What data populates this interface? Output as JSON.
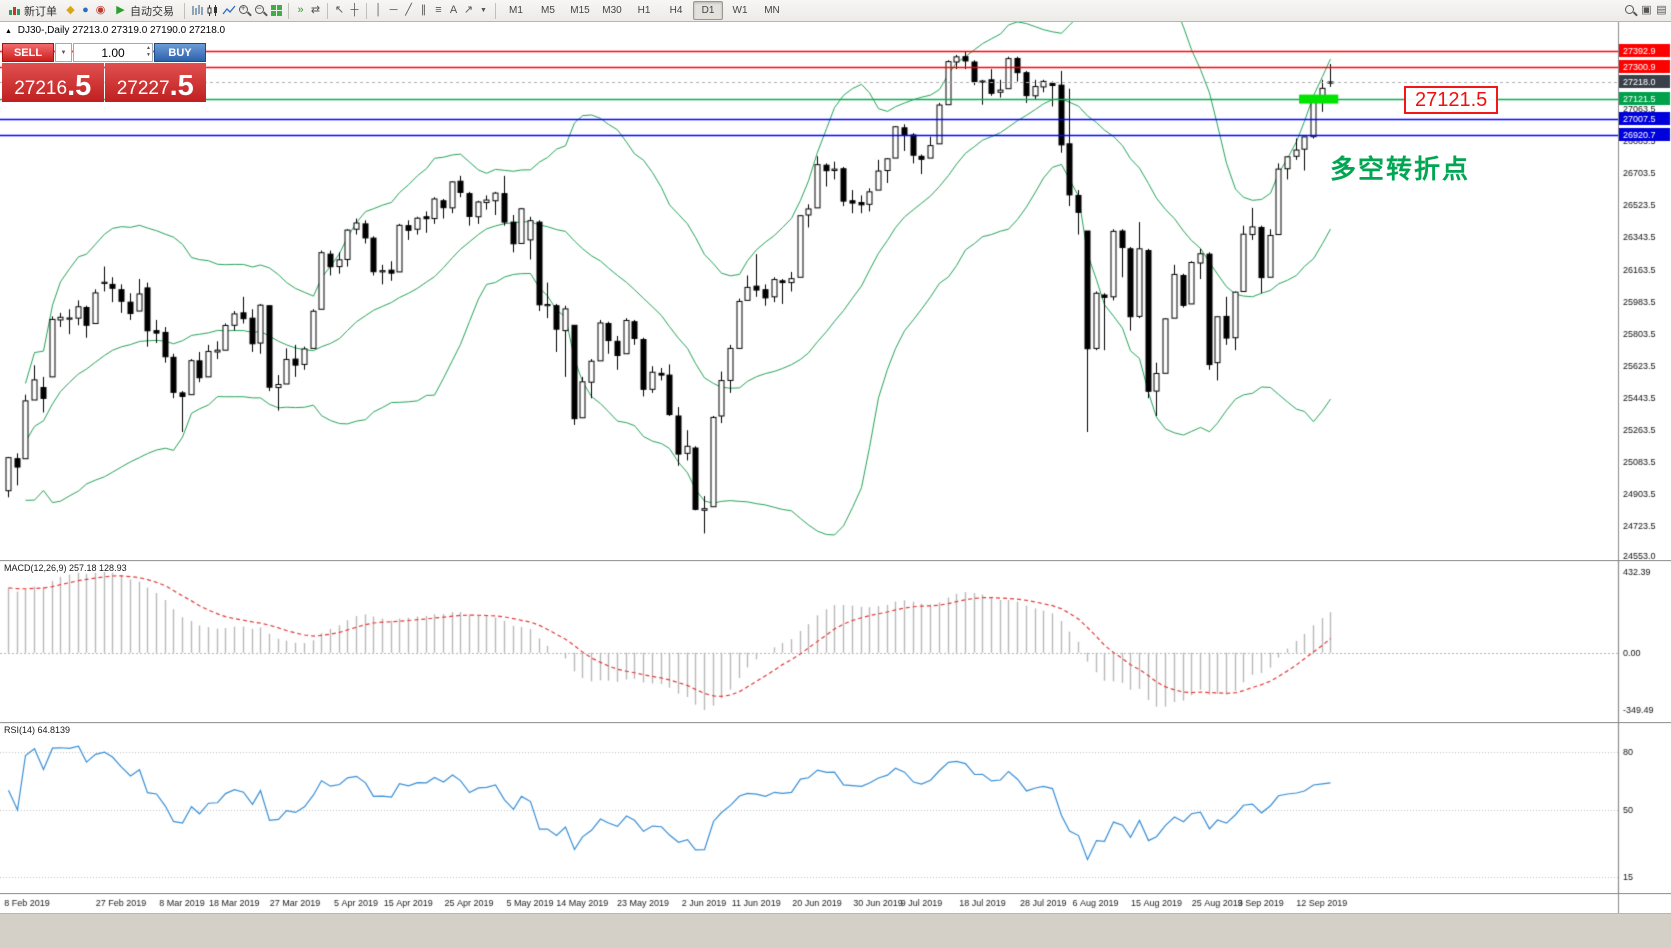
{
  "toolbar": {
    "new_order": "新订单",
    "auto_trading": "自动交易",
    "timeframes": [
      "M1",
      "M5",
      "M15",
      "M30",
      "H1",
      "H4",
      "D1",
      "W1",
      "MN"
    ],
    "active_timeframe": "D1"
  },
  "icons": {
    "triangle_up": "▲",
    "dropdown": "▼",
    "spin_up": "▲",
    "spin_down": "▼",
    "play": "▶",
    "diamond": "◆",
    "circle": "●",
    "ring": "◉",
    "cursor": "↖",
    "crosshair": "┼",
    "vline": "│",
    "hline": "─",
    "trendline": "╱",
    "channel": "∥",
    "fibonacci": "≡",
    "text_tool": "A",
    "arrow_tool": "↗",
    "autoscroll": "»",
    "shift": "⇄",
    "windows": "▣",
    "layout": "▤",
    "plus": "+",
    "minus": "−"
  },
  "chart_header": {
    "symbol": "DJ30-,Daily",
    "ohlc": "27213.0 27319.0 27190.0 27218.0"
  },
  "trade_panel": {
    "sell_label": "SELL",
    "buy_label": "BUY",
    "volume": "1.00",
    "sell_price": {
      "main": "27216",
      "pips": ".5"
    },
    "buy_price": {
      "main": "27227",
      "pips": ".5"
    }
  },
  "annotations": {
    "turning_point": "多空转折点",
    "price_tag": "27121.5"
  },
  "panels": {
    "macd_label": "MACD(12,26,9) 257.18 128.93",
    "macd_axis": {
      "max": "432.39",
      "zero": "0.00",
      "min": "-349.49"
    },
    "rsi_label": "RSI(14) 64.8139"
  },
  "chart_data": {
    "type": "candlestick",
    "symbol": "DJ30-",
    "period": "Daily",
    "ohlc_current": {
      "open": 27213.0,
      "high": 27319.0,
      "low": 27190.0,
      "close": 27218.0
    },
    "bid": 27216.5,
    "ask": 27227.5,
    "y_axis": {
      "top": 27420,
      "bottom": 24553,
      "ticks": [
        27063.5,
        26883.5,
        26703.5,
        26523.5,
        26343.5,
        26163.5,
        25983.5,
        25803.5,
        25623.5,
        25443.5,
        25263.5,
        25083.5,
        24903.5,
        24723.5,
        24553.0
      ]
    },
    "levels": [
      {
        "price": 27392.9,
        "label": "27392.9",
        "color": "#ff0000",
        "chip": "#ff0000",
        "width": 1.4
      },
      {
        "price": 27300.9,
        "label": "27300.9",
        "color": "#ff0000",
        "chip": "#ff0000",
        "width": 1.4
      },
      {
        "price": 27218.0,
        "label": "27218.0",
        "color": "#b0b0b0",
        "chip": "#3a4049",
        "width": 1,
        "style": "bid"
      },
      {
        "price": 27121.5,
        "label": "27121.5",
        "color": "#00b050",
        "chip": "#00a14b",
        "width": 1.4
      },
      {
        "price": 27007.5,
        "label": "27007.5",
        "color": "#0000ff",
        "chip": "#0000dd",
        "width": 1.6
      },
      {
        "price": 26920.7,
        "label": "26920.7",
        "color": "#0000ff",
        "chip": "#0000dd",
        "width": 1.6
      }
    ],
    "green_zone": {
      "price": 27121.5,
      "from_index": 148.4,
      "to_index": 152.9,
      "color": "#00e400"
    },
    "indicators": {
      "bollinger": {
        "period": 20,
        "deviation": 2,
        "color": "#27a35a"
      },
      "macd": {
        "fast": 12,
        "slow": 26,
        "signal": 9,
        "histogram_color": "#b9b9b9",
        "signal_color": "#e33b3b",
        "current_main": 257.18,
        "current_signal": 128.93
      },
      "rsi": {
        "period": 14,
        "color": "#3a8fd6",
        "levels": [
          80,
          50,
          15
        ],
        "current": 64.8139
      }
    },
    "x_ticks": [
      {
        "label": "8 Feb 2019",
        "index": 0
      },
      {
        "label": "27 Feb 2019",
        "index": 13
      },
      {
        "label": "8 Mar 2019",
        "index": 20
      },
      {
        "label": "18 Mar 2019",
        "index": 26
      },
      {
        "label": "27 Mar 2019",
        "index": 33
      },
      {
        "label": "5 Apr 2019",
        "index": 40
      },
      {
        "label": "15 Apr 2019",
        "index": 46
      },
      {
        "label": "25 Apr 2019",
        "index": 53
      },
      {
        "label": "5 May 2019",
        "index": 60
      },
      {
        "label": "14 May 2019",
        "index": 66
      },
      {
        "label": "23 May 2019",
        "index": 73
      },
      {
        "label": "2 Jun 2019",
        "index": 80
      },
      {
        "label": "11 Jun 2019",
        "index": 86
      },
      {
        "label": "20 Jun 2019",
        "index": 93
      },
      {
        "label": "30 Jun 2019",
        "index": 100
      },
      {
        "label": "9 Jul 2019",
        "index": 105
      },
      {
        "label": "18 Jul 2019",
        "index": 112
      },
      {
        "label": "28 Jul 2019",
        "index": 119
      },
      {
        "label": "6 Aug 2019",
        "index": 125
      },
      {
        "label": "15 Aug 2019",
        "index": 132
      },
      {
        "label": "25 Aug 2019",
        "index": 139
      },
      {
        "label": "3 Sep 2019",
        "index": 144
      },
      {
        "label": "12 Sep 2019",
        "index": 151
      }
    ],
    "candles": [
      [
        24920,
        25110,
        24883,
        25106
      ],
      [
        25100,
        25130,
        24950,
        25053
      ],
      [
        25100,
        25460,
        25100,
        25425
      ],
      [
        25430,
        25625,
        25430,
        25543
      ],
      [
        25500,
        25560,
        25360,
        25439
      ],
      [
        25560,
        25900,
        25560,
        25883
      ],
      [
        25880,
        25920,
        25840,
        25895
      ],
      [
        25890,
        25940,
        25800,
        25891
      ],
      [
        25890,
        25990,
        25850,
        25954
      ],
      [
        25950,
        25960,
        25780,
        25850
      ],
      [
        25860,
        26052,
        25860,
        26032
      ],
      [
        26090,
        26180,
        26040,
        26092
      ],
      [
        26080,
        26120,
        25980,
        26058
      ],
      [
        26050,
        26080,
        25920,
        25985
      ],
      [
        25980,
        26030,
        25880,
        25916
      ],
      [
        25930,
        26110,
        25930,
        26026
      ],
      [
        26060,
        26090,
        25730,
        25819
      ],
      [
        25820,
        25880,
        25750,
        25806
      ],
      [
        25810,
        25840,
        25640,
        25673
      ],
      [
        25670,
        25690,
        25440,
        25473
      ],
      [
        25470,
        25480,
        25250,
        25450
      ],
      [
        25460,
        25660,
        25460,
        25651
      ],
      [
        25650,
        25700,
        25530,
        25555
      ],
      [
        25560,
        25740,
        25560,
        25703
      ],
      [
        25700,
        25760,
        25660,
        25710
      ],
      [
        25710,
        25860,
        25710,
        25849
      ],
      [
        25850,
        25930,
        25820,
        25914
      ],
      [
        25920,
        26010,
        25860,
        25887
      ],
      [
        25890,
        25940,
        25700,
        25746
      ],
      [
        25750,
        25970,
        25690,
        25963
      ],
      [
        25960,
        25960,
        25480,
        25502
      ],
      [
        25500,
        25570,
        25370,
        25517
      ],
      [
        25520,
        25720,
        25520,
        25658
      ],
      [
        25660,
        25740,
        25560,
        25626
      ],
      [
        25630,
        25730,
        25600,
        25717
      ],
      [
        25720,
        25940,
        25720,
        25929
      ],
      [
        25940,
        26270,
        25940,
        26258
      ],
      [
        26250,
        26270,
        26130,
        26179
      ],
      [
        26180,
        26260,
        26140,
        26218
      ],
      [
        26220,
        26390,
        26180,
        26385
      ],
      [
        26390,
        26450,
        26360,
        26425
      ],
      [
        26420,
        26440,
        26310,
        26341
      ],
      [
        26340,
        26350,
        26130,
        26151
      ],
      [
        26150,
        26190,
        26080,
        26157
      ],
      [
        26160,
        26210,
        26100,
        26143
      ],
      [
        26150,
        26420,
        26150,
        26412
      ],
      [
        26410,
        26440,
        26330,
        26384
      ],
      [
        26390,
        26460,
        26360,
        26452
      ],
      [
        26460,
        26490,
        26370,
        26449
      ],
      [
        26450,
        26570,
        26420,
        26560
      ],
      [
        26550,
        26560,
        26450,
        26511
      ],
      [
        26510,
        26660,
        26480,
        26656
      ],
      [
        26660,
        26690,
        26570,
        26597
      ],
      [
        26590,
        26600,
        26410,
        26462
      ],
      [
        26460,
        26550,
        26420,
        26543
      ],
      [
        26540,
        26580,
        26500,
        26554
      ],
      [
        26550,
        26600,
        26470,
        26593
      ],
      [
        26590,
        26690,
        26410,
        26430
      ],
      [
        26430,
        26470,
        26260,
        26308
      ],
      [
        26310,
        26510,
        26310,
        26505
      ],
      [
        26330,
        26460,
        26220,
        26438
      ],
      [
        26430,
        26440,
        25930,
        25965
      ],
      [
        25960,
        26090,
        25890,
        25967
      ],
      [
        25960,
        25970,
        25700,
        25828
      ],
      [
        25820,
        25960,
        25560,
        25942
      ],
      [
        25850,
        25850,
        25290,
        25325
      ],
      [
        25330,
        25560,
        25330,
        25532
      ],
      [
        25530,
        25660,
        25440,
        25648
      ],
      [
        25650,
        25880,
        25650,
        25863
      ],
      [
        25860,
        25870,
        25690,
        25764
      ],
      [
        25760,
        25790,
        25600,
        25680
      ],
      [
        25690,
        25890,
        25690,
        25877
      ],
      [
        25870,
        25880,
        25740,
        25776
      ],
      [
        25770,
        25780,
        25450,
        25490
      ],
      [
        25490,
        25620,
        25470,
        25586
      ],
      [
        25580,
        25610,
        25540,
        25570
      ],
      [
        25570,
        25630,
        25340,
        25348
      ],
      [
        25340,
        25390,
        25060,
        25126
      ],
      [
        25130,
        25260,
        25090,
        25170
      ],
      [
        25160,
        25170,
        24810,
        24815
      ],
      [
        24810,
        24890,
        24680,
        24819
      ],
      [
        24830,
        25340,
        24830,
        25332
      ],
      [
        25340,
        25590,
        25300,
        25539
      ],
      [
        25540,
        25740,
        25470,
        25720
      ],
      [
        25720,
        26000,
        25720,
        25984
      ],
      [
        25990,
        26130,
        25990,
        26063
      ],
      [
        26070,
        26250,
        26010,
        26048
      ],
      [
        26050,
        26080,
        25960,
        26004
      ],
      [
        26010,
        26120,
        25980,
        26107
      ],
      [
        26100,
        26110,
        25970,
        26090
      ],
      [
        26090,
        26150,
        26040,
        26112
      ],
      [
        26120,
        26470,
        26120,
        26466
      ],
      [
        26470,
        26530,
        26400,
        26504
      ],
      [
        26510,
        26800,
        26510,
        26753
      ],
      [
        26750,
        26760,
        26630,
        26719
      ],
      [
        26720,
        26770,
        26670,
        26728
      ],
      [
        26730,
        26740,
        26520,
        26548
      ],
      [
        26550,
        26610,
        26480,
        26537
      ],
      [
        26540,
        26580,
        26480,
        26527
      ],
      [
        26530,
        26620,
        26490,
        26600
      ],
      [
        26610,
        26780,
        26610,
        26717
      ],
      [
        26720,
        26790,
        26650,
        26786
      ],
      [
        26790,
        26970,
        26790,
        26966
      ],
      [
        26960,
        26980,
        26830,
        26922
      ],
      [
        26920,
        26930,
        26760,
        26806
      ],
      [
        26800,
        26810,
        26700,
        26783
      ],
      [
        26790,
        26910,
        26790,
        26860
      ],
      [
        26870,
        27100,
        26870,
        27088
      ],
      [
        27090,
        27340,
        27090,
        27332
      ],
      [
        27330,
        27370,
        27290,
        27359
      ],
      [
        27360,
        27390,
        27290,
        27336
      ],
      [
        27330,
        27340,
        27200,
        27220
      ],
      [
        27220,
        27230,
        27090,
        27223
      ],
      [
        27230,
        27290,
        27140,
        27154
      ],
      [
        27160,
        27230,
        27130,
        27172
      ],
      [
        27180,
        27360,
        27180,
        27349
      ],
      [
        27350,
        27360,
        27220,
        27270
      ],
      [
        27270,
        27280,
        27100,
        27141
      ],
      [
        27140,
        27230,
        27120,
        27192
      ],
      [
        27190,
        27230,
        27160,
        27221
      ],
      [
        27210,
        27220,
        27080,
        27198
      ],
      [
        27200,
        27280,
        26820,
        26864
      ],
      [
        26870,
        27180,
        26520,
        26583
      ],
      [
        26580,
        26610,
        26360,
        26485
      ],
      [
        26380,
        26380,
        25250,
        25718
      ],
      [
        25720,
        26040,
        25710,
        26030
      ],
      [
        26020,
        26030,
        25710,
        26007
      ],
      [
        26010,
        26390,
        25990,
        26378
      ],
      [
        26380,
        26390,
        26120,
        26287
      ],
      [
        26280,
        26290,
        25820,
        25898
      ],
      [
        25900,
        26430,
        25890,
        26280
      ],
      [
        26270,
        26280,
        25440,
        25479
      ],
      [
        25480,
        25640,
        25340,
        25579
      ],
      [
        25580,
        25890,
        25580,
        25886
      ],
      [
        25890,
        26190,
        25890,
        26136
      ],
      [
        26130,
        26140,
        25950,
        25962
      ],
      [
        25970,
        26210,
        25970,
        26203
      ],
      [
        26200,
        26280,
        26110,
        26252
      ],
      [
        26250,
        26260,
        25600,
        25629
      ],
      [
        25640,
        25900,
        25540,
        25898
      ],
      [
        25900,
        26010,
        25740,
        25778
      ],
      [
        25780,
        26040,
        25710,
        26036
      ],
      [
        26040,
        26410,
        26040,
        26362
      ],
      [
        26360,
        26510,
        26330,
        26403
      ],
      [
        26400,
        26410,
        26030,
        26118
      ],
      [
        26120,
        26390,
        26120,
        26355
      ],
      [
        26360,
        26760,
        26360,
        26728
      ],
      [
        26730,
        26800,
        26670,
        26797
      ],
      [
        26800,
        26900,
        26780,
        26835
      ],
      [
        26840,
        26910,
        26720,
        26909
      ],
      [
        26910,
        27140,
        26900,
        27137
      ],
      [
        27140,
        27230,
        27050,
        27182
      ],
      [
        27213,
        27319,
        27190,
        27218
      ]
    ]
  }
}
